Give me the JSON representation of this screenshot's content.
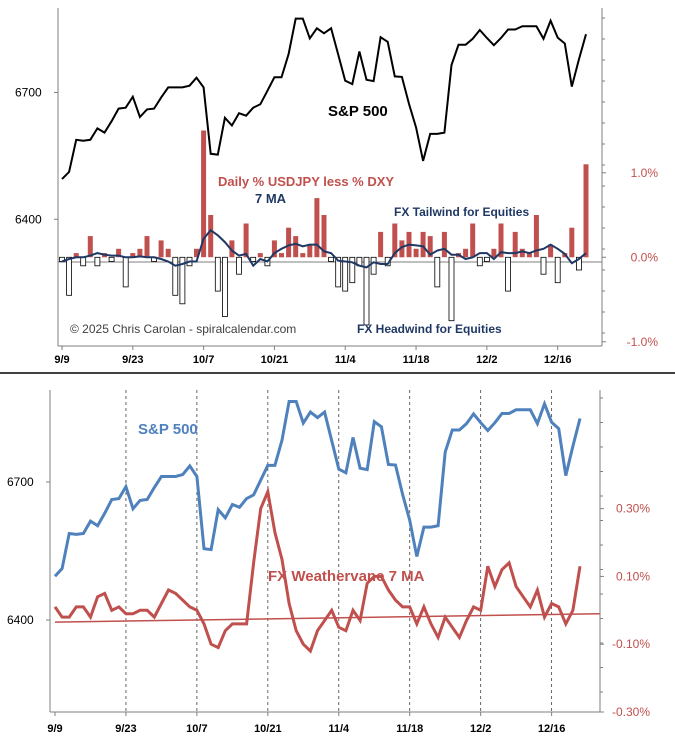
{
  "colors": {
    "spx_black": "#000000",
    "bar_red": "#c0504d",
    "ma_navy": "#1f3864",
    "spx_blue": "#4f81bd",
    "weathervane_red": "#c0504d",
    "axis_gray": "#7f7f7f",
    "divider": "#000000"
  },
  "chart_data": [
    {
      "id": "top",
      "type": "line+bar",
      "title": "S&P 500",
      "annotations": {
        "bars_label": "Daily % USDJPY less % DXY",
        "ma_label": "7 MA",
        "tailwind": "FX Tailwind for Equities",
        "headwind": "FX Headwind for Equities",
        "copyright": "© 2025 Chris Carolan - spiralcalendar.com"
      },
      "x_ticks": [
        "9/9",
        "9/23",
        "10/7",
        "10/21",
        "11/4",
        "11/18",
        "12/2",
        "12/16"
      ],
      "x_tick_index": [
        0,
        10,
        20,
        30,
        40,
        50,
        60,
        70
      ],
      "left_axis": {
        "ticks": [
          "6700",
          "6400"
        ],
        "tick_values": [
          6700,
          6400
        ],
        "range": [
          6100,
          6900
        ]
      },
      "right_axis": {
        "ticks": [
          "1.0%",
          "0.0%",
          "-1.0%"
        ],
        "tick_values": [
          1.0,
          0.0,
          -1.0
        ],
        "range": [
          -1.05,
          2.95
        ]
      },
      "spx": [
        6495,
        6512,
        6588,
        6586,
        6588,
        6615,
        6605,
        6632,
        6662,
        6664,
        6690,
        6642,
        6660,
        6662,
        6688,
        6712,
        6712,
        6712,
        6716,
        6735,
        6712,
        6555,
        6553,
        6640,
        6622,
        6651,
        6645,
        6664,
        6672,
        6704,
        6736,
        6736,
        6791,
        6875,
        6875,
        6828,
        6852,
        6840,
        6852,
        6790,
        6728,
        6720,
        6797,
        6730,
        6727,
        6831,
        6820,
        6738,
        6737,
        6673,
        6617,
        6538,
        6602,
        6602,
        6605,
        6765,
        6813,
        6813,
        6827,
        6848,
        6829,
        6812,
        6829,
        6849,
        6849,
        6857,
        6857,
        6857,
        6827,
        6870,
        6830,
        6816,
        6714,
        6778,
        6838
      ],
      "fx_bars": [
        -0.05,
        -0.45,
        0.05,
        -0.1,
        0.25,
        -0.1,
        0.05,
        -0.05,
        0.1,
        -0.35,
        0.05,
        0.1,
        0.25,
        -0.05,
        0.2,
        0.1,
        -0.45,
        -0.55,
        -0.1,
        0.1,
        1.5,
        0.5,
        -0.4,
        -0.7,
        0.2,
        -0.2,
        0.4,
        -0.05,
        0.05,
        -0.1,
        0.2,
        0.05,
        0.35,
        0.25,
        0.05,
        0.15,
        0.7,
        0.5,
        -0.05,
        -0.35,
        -0.4,
        -0.3,
        -0.1,
        -0.8,
        -0.2,
        0.3,
        -0.1,
        0.4,
        0.2,
        0.3,
        0.1,
        0.3,
        0.25,
        -0.35,
        0.3,
        -0.75,
        0.05,
        0.1,
        0.4,
        -0.1,
        -0.05,
        0.1,
        0.4,
        -0.4,
        0.3,
        0.1,
        0.05,
        0.5,
        -0.2,
        0.15,
        -0.3,
        0.05,
        0.35,
        -0.15,
        1.1
      ],
      "fx_ma": [
        -0.05,
        -0.02,
        0.0,
        0.0,
        0.02,
        0.05,
        0.03,
        0.02,
        0.02,
        0.0,
        0.0,
        0.01,
        0.0,
        0.0,
        -0.02,
        -0.05,
        -0.1,
        -0.08,
        -0.05,
        -0.05,
        0.22,
        0.32,
        0.26,
        0.18,
        0.08,
        0.02,
        0.04,
        -0.1,
        -0.02,
        -0.05,
        0.05,
        0.1,
        0.14,
        0.16,
        0.13,
        0.15,
        0.15,
        0.07,
        0.05,
        -0.04,
        -0.05,
        -0.06,
        -0.1,
        -0.12,
        -0.06,
        -0.08,
        -0.08,
        0.05,
        0.12,
        0.15,
        0.14,
        0.13,
        0.03,
        0.08,
        0.1,
        0.03,
        0.03,
        -0.02,
        0.0,
        0.05,
        0.05,
        -0.02,
        0.06,
        0.05,
        0.05,
        0.07,
        0.05,
        0.08,
        0.1,
        0.15,
        0.1,
        0.04,
        -0.07,
        -0.02,
        0.05
      ]
    },
    {
      "id": "bottom",
      "type": "line",
      "series_labels": {
        "spx": "S&P 500",
        "weathervane": "FX Weathervane 7 MA"
      },
      "x_ticks": [
        "9/9",
        "9/23",
        "10/7",
        "10/21",
        "11/4",
        "11/18",
        "12/2",
        "12/16"
      ],
      "x_tick_index": [
        0,
        10,
        20,
        30,
        40,
        50,
        60,
        70
      ],
      "left_axis": {
        "ticks": [
          "6700",
          "6400"
        ],
        "tick_values": [
          6700,
          6400
        ],
        "range": [
          6200,
          6900
        ]
      },
      "right_axis": {
        "ticks": [
          "0.30%",
          "0.10%",
          "-0.10%",
          "-0.30%"
        ],
        "tick_values": [
          0.3,
          0.1,
          -0.1,
          -0.3
        ],
        "range": [
          -0.3,
          0.65
        ]
      },
      "trend_line": {
        "from": -0.035,
        "to": -0.01
      },
      "weathervane": [
        0.01,
        -0.02,
        -0.02,
        0.01,
        0.01,
        -0.02,
        0.04,
        0.05,
        0.0,
        0.01,
        -0.01,
        -0.01,
        0.0,
        0.0,
        -0.02,
        0.02,
        0.06,
        0.05,
        0.03,
        0.01,
        0.0,
        -0.04,
        -0.1,
        -0.11,
        -0.06,
        -0.04,
        -0.04,
        -0.04,
        0.14,
        0.3,
        0.35,
        0.23,
        0.15,
        0.02,
        -0.06,
        -0.1,
        -0.12,
        -0.06,
        -0.03,
        0.0,
        -0.05,
        -0.06,
        0.0,
        -0.03,
        0.08,
        0.1,
        0.1,
        0.06,
        0.03,
        0.01,
        0.01,
        -0.04,
        0.01,
        -0.04,
        -0.08,
        -0.02,
        -0.05,
        -0.08,
        -0.03,
        0.01,
        0.0,
        0.13,
        0.07,
        0.12,
        0.14,
        0.07,
        0.04,
        0.01,
        0.06,
        -0.02,
        0.02,
        0.01,
        -0.04,
        0.0,
        0.13
      ]
    }
  ]
}
